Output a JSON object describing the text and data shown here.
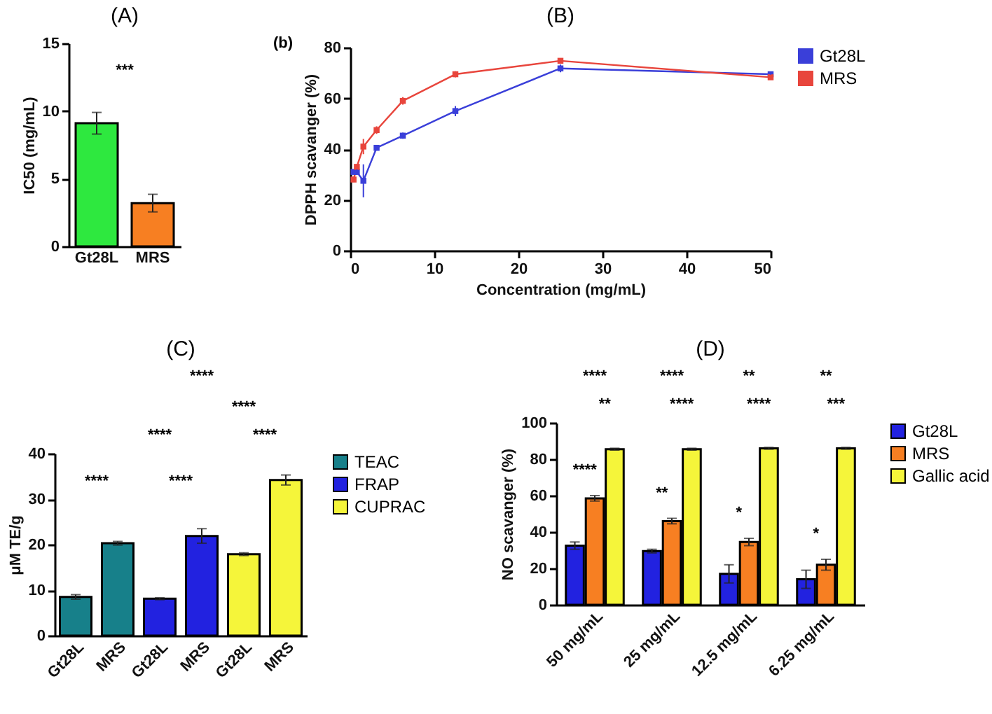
{
  "chart_data": [
    {
      "type": "bar",
      "title": "(A)",
      "ylabel": "IC50 (mg/mL)",
      "categories": [
        "Gt28L",
        "MRS"
      ],
      "values": [
        9.1,
        3.2
      ],
      "colors": [
        "#2ee83f",
        "#f77f22"
      ],
      "errors": [
        0.8,
        0.65
      ],
      "ylim": [
        0,
        15
      ],
      "yticks": [
        0,
        5,
        10,
        15
      ],
      "annotations": [
        "***"
      ]
    },
    {
      "type": "line",
      "title": "(B)",
      "xlabel": "Concentration (mg/mL)",
      "ylabel": "DPPH scavanger (%)",
      "xlim": [
        0,
        50
      ],
      "xticks": [
        0,
        10,
        20,
        30,
        40,
        50
      ],
      "ylim": [
        0,
        80
      ],
      "yticks": [
        0,
        20,
        40,
        60,
        80
      ],
      "legend": "right",
      "marker": "square",
      "line_style": "solid",
      "annotations": [
        "(b)"
      ],
      "series": [
        {
          "name": "Gt28L",
          "color": "#3a3fd9",
          "x": [
            0.39,
            0.78,
            1.56,
            3.13,
            6.25,
            12.5,
            25,
            50
          ],
          "values": [
            31,
            31,
            27.5,
            40.5,
            45.3,
            55,
            71.8,
            69.5
          ],
          "errors": [
            1,
            1,
            6.5,
            0.8,
            1.2,
            2,
            1.5,
            0.8
          ]
        },
        {
          "name": "MRS",
          "color": "#e8453c",
          "x": [
            0.39,
            0.78,
            1.56,
            3.13,
            6.25,
            12.5,
            25,
            50
          ],
          "values": [
            28,
            33,
            41,
            47.5,
            59,
            69.5,
            74.8,
            68.3
          ],
          "errors": [
            1,
            0.8,
            3,
            1.5,
            1.5,
            1.2,
            0.8,
            1
          ]
        }
      ]
    },
    {
      "type": "bar",
      "title": "(C)",
      "ylabel": "μM TE/g",
      "categories": [
        "Gt28L",
        "MRS",
        "Gt28L",
        "MRS",
        "Gt28L",
        "MRS"
      ],
      "ylim": [
        0,
        40
      ],
      "yticks": [
        0,
        10,
        20,
        30,
        40
      ],
      "legend": "right",
      "annotations": [
        "****",
        "****",
        "****",
        "****",
        "****",
        "****"
      ],
      "series": [
        {
          "name": "TEAC",
          "color": "#17808a",
          "values": [
            8.5,
            20.3,
            null,
            null,
            null,
            null
          ],
          "errors": [
            0.5,
            0.4,
            null,
            null,
            null,
            null
          ]
        },
        {
          "name": "FRAP",
          "color": "#2222e0",
          "values": [
            null,
            null,
            8.1,
            21.9,
            null,
            null
          ],
          "errors": [
            null,
            null,
            0.2,
            1.6,
            null,
            null
          ]
        },
        {
          "name": "CUPRAC",
          "color": "#f5f53a",
          "values": [
            null,
            null,
            null,
            null,
            17.9,
            34.2
          ],
          "errors": [
            null,
            null,
            null,
            null,
            0.3,
            1.1
          ]
        }
      ]
    },
    {
      "type": "bar",
      "title": "(D)",
      "ylabel": "NO scavanger (%)",
      "categories": [
        "50 mg/mL",
        "25 mg/mL",
        "12.5 mg/mL",
        "6.25 mg/mL"
      ],
      "ylim": [
        0,
        100
      ],
      "yticks": [
        0,
        20,
        40,
        60,
        80,
        100
      ],
      "legend": "right",
      "annotations": [
        "****",
        "**",
        "****",
        "****",
        "****",
        "**",
        "**",
        "****",
        "*",
        "**",
        "***",
        "*"
      ],
      "series": [
        {
          "name": "Gt28L",
          "color": "#2222e0",
          "values": [
            32.5,
            29.5,
            17,
            14
          ],
          "errors": [
            2,
            1,
            5,
            5
          ]
        },
        {
          "name": "MRS",
          "color": "#f77f22",
          "values": [
            58.5,
            46,
            34.5,
            22
          ],
          "errors": [
            1.5,
            1.5,
            2,
            3
          ]
        },
        {
          "name": "Gallic acid",
          "color": "#f5f53a",
          "values": [
            85.5,
            85.5,
            86,
            86
          ],
          "errors": [
            0.5,
            0.5,
            0.5,
            0.5
          ]
        }
      ]
    }
  ]
}
